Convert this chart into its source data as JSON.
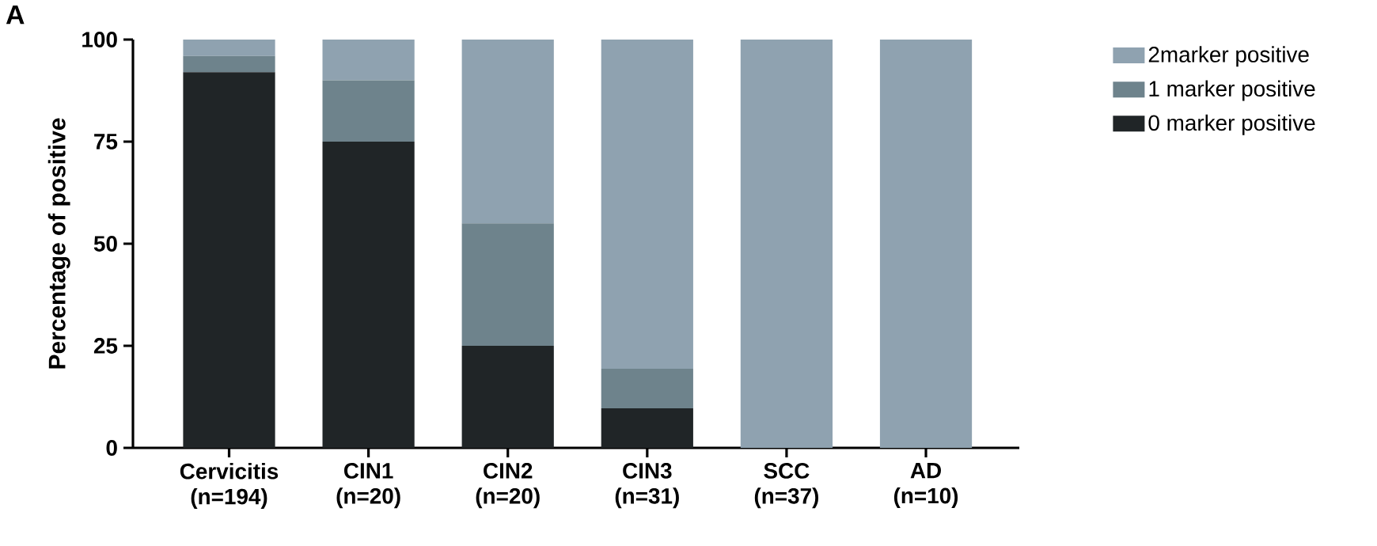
{
  "chart_data": {
    "type": "bar",
    "stacked": true,
    "title": "A",
    "ylabel": "Percentage of positive",
    "categories": [
      "Cervicitis (n=194)",
      "CIN1 (n=20)",
      "CIN2 (n=20)",
      "CIN3 (n=31)",
      "SCC (n=37)",
      "AD (n=10)"
    ],
    "series": [
      {
        "name": "0 marker positive",
        "color": "#202527",
        "values": [
          92,
          75,
          25,
          9.7,
          0,
          0
        ]
      },
      {
        "name": "1 marker positive",
        "color": "#6e838c",
        "values": [
          4,
          15,
          30,
          9.7,
          0,
          0
        ]
      },
      {
        "name": "2marker positive",
        "color": "#8fa2b0",
        "values": [
          4,
          10,
          45,
          80.6,
          100,
          100
        ]
      }
    ],
    "ylim": [
      0,
      100
    ],
    "yticks": [
      0,
      25,
      50,
      75,
      100
    ],
    "legend": "right"
  }
}
